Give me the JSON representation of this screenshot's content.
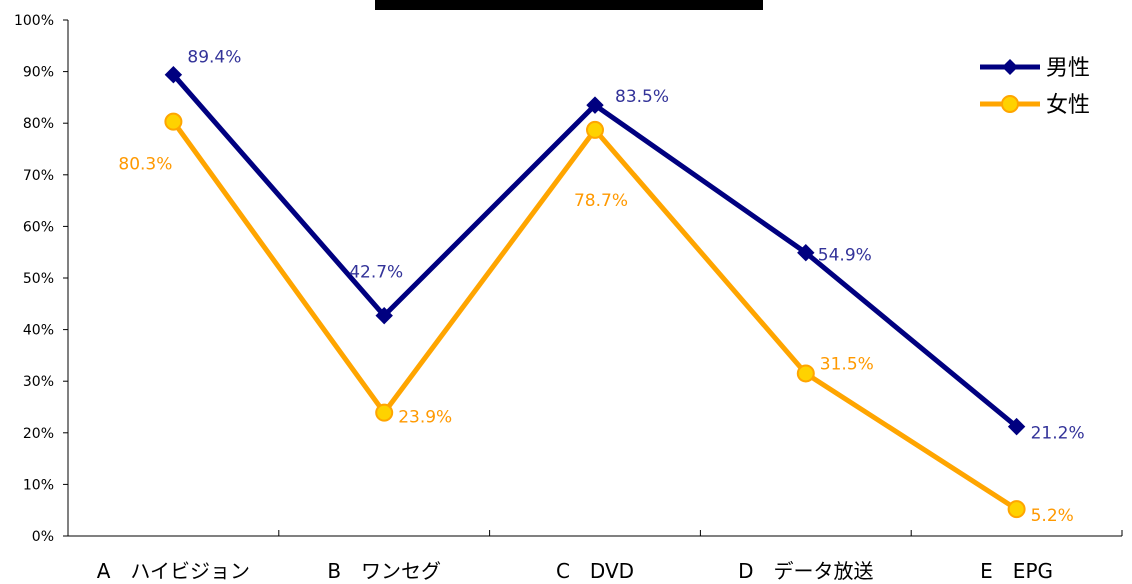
{
  "chart_data": {
    "type": "line",
    "title": "",
    "xlabel": "",
    "ylabel": "",
    "categories": [
      "A　ハイビジョン",
      "B　ワンセグ",
      "C　DVD",
      "D　データ放送",
      "E　EPG"
    ],
    "ylim": [
      0,
      100
    ],
    "y_ticks": [
      "0%",
      "10%",
      "20%",
      "30%",
      "40%",
      "50%",
      "60%",
      "70%",
      "80%",
      "90%",
      "100%"
    ],
    "grid": false,
    "legend_position": "top-right",
    "series": [
      {
        "name": "男性",
        "values": [
          89.4,
          42.7,
          83.5,
          54.9,
          21.2
        ],
        "labels": [
          "89.4%",
          "42.7%",
          "83.5%",
          "54.9%",
          "21.2%"
        ],
        "color": "#000080",
        "label_color": "#333399",
        "marker": "diamond"
      },
      {
        "name": "女性",
        "values": [
          80.3,
          23.9,
          78.7,
          31.5,
          5.2
        ],
        "labels": [
          "80.3%",
          "23.9%",
          "78.7%",
          "31.5%",
          "5.2%"
        ],
        "color": "#FFA500",
        "label_color": "#FF9900",
        "marker_fill": "#FFD200",
        "marker": "circle"
      }
    ],
    "title_box_color": "#000000"
  }
}
